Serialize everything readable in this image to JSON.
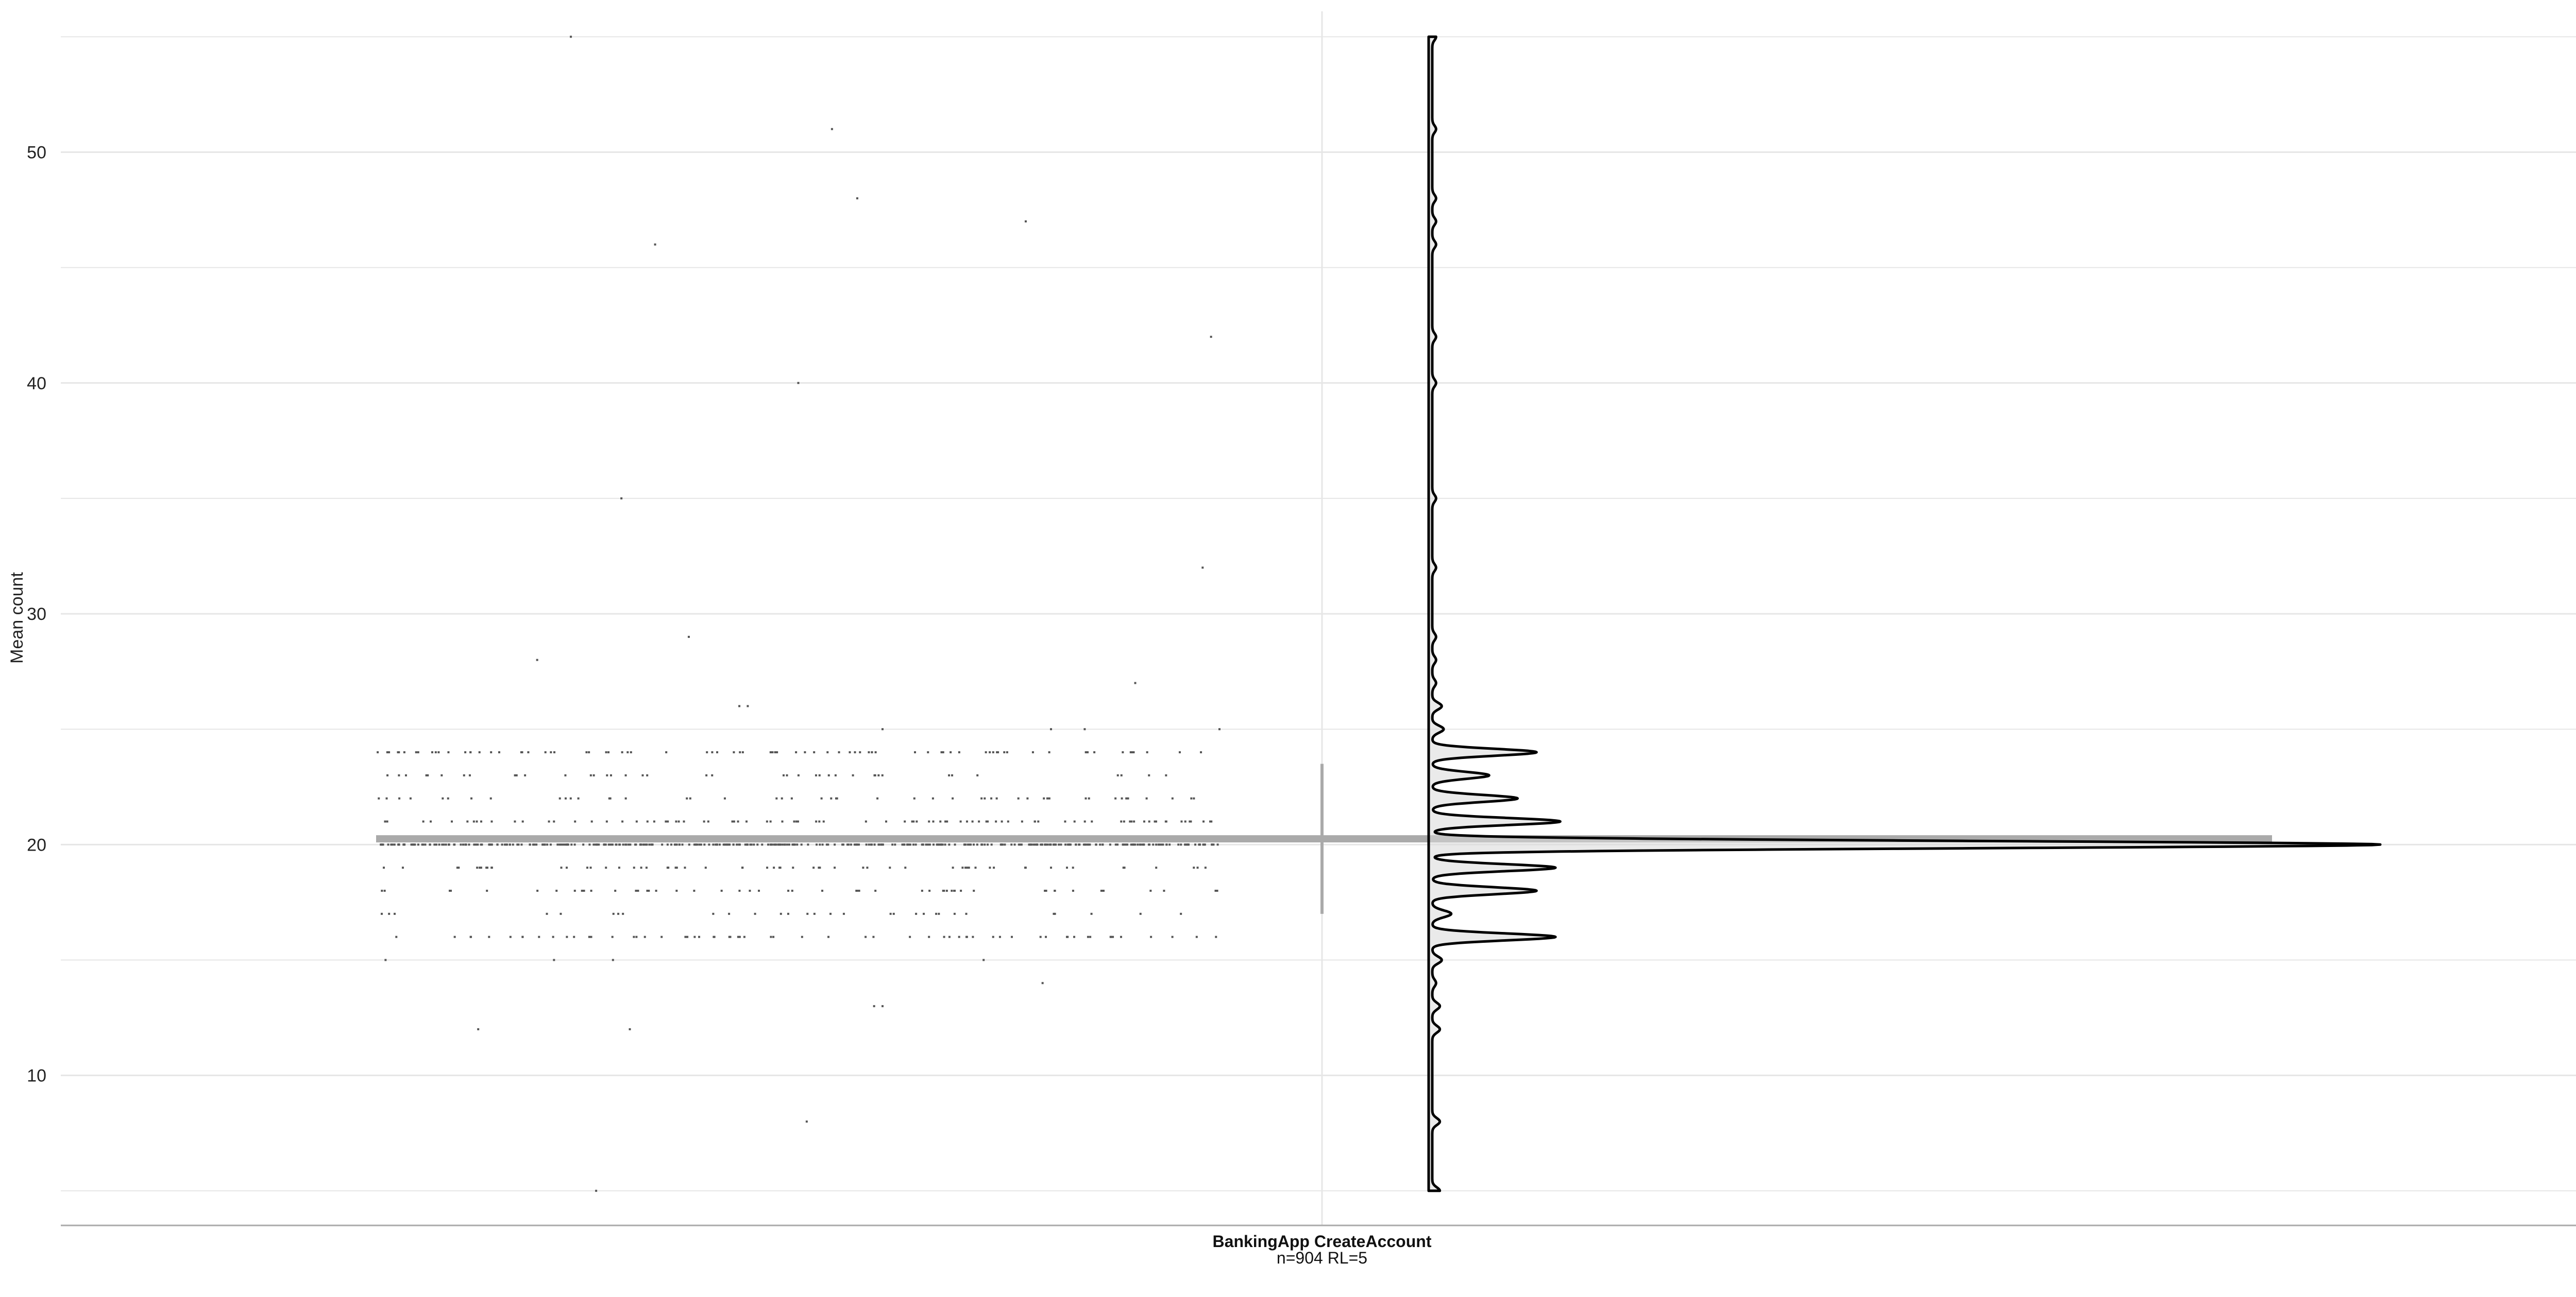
{
  "chart_data": {
    "type": "scatter",
    "subtype": "jittered points with raincloud density, mean bar and sd range",
    "ylabel": "Mean count",
    "ylim": [
      3.5,
      55.7
    ],
    "yticks": [
      10,
      20,
      30,
      40,
      50
    ],
    "grid": true,
    "colors": {
      "points": "#555555",
      "summary": "#aaaaaa",
      "density_line": "#000000",
      "density_fill": "#d9d9d9",
      "grid": "#e6e6e6",
      "axis": "#aaaaaa"
    },
    "category": {
      "label": "BankingApp CreateAccount",
      "sublabel": "n=904 RL=5"
    },
    "summary": {
      "mean": 20.25,
      "sd_low": 17.0,
      "sd_high": 23.5
    },
    "outliers": [
      {
        "x": 0.23,
        "y": 55
      },
      {
        "x": 0.54,
        "y": 51
      },
      {
        "x": 0.57,
        "y": 48
      },
      {
        "x": 0.77,
        "y": 47
      },
      {
        "x": 0.33,
        "y": 46
      },
      {
        "x": 0.99,
        "y": 42
      },
      {
        "x": 0.5,
        "y": 40
      },
      {
        "x": 0.29,
        "y": 35
      },
      {
        "x": 0.98,
        "y": 32
      },
      {
        "x": 0.37,
        "y": 29
      },
      {
        "x": 0.19,
        "y": 28
      },
      {
        "x": 0.43,
        "y": 26
      },
      {
        "x": 0.44,
        "y": 26
      },
      {
        "x": 0.9,
        "y": 27
      },
      {
        "x": 0.6,
        "y": 25
      },
      {
        "x": 0.8,
        "y": 25
      },
      {
        "x": 0.84,
        "y": 25
      },
      {
        "x": 1.0,
        "y": 25
      },
      {
        "x": 0.01,
        "y": 15
      },
      {
        "x": 0.21,
        "y": 15
      },
      {
        "x": 0.28,
        "y": 15
      },
      {
        "x": 0.72,
        "y": 15
      },
      {
        "x": 0.79,
        "y": 14
      },
      {
        "x": 0.12,
        "y": 12
      },
      {
        "x": 0.3,
        "y": 12
      },
      {
        "x": 0.59,
        "y": 13
      },
      {
        "x": 0.6,
        "y": 13
      },
      {
        "x": 0.51,
        "y": 8
      },
      {
        "x": 0.26,
        "y": 5
      }
    ],
    "bulk_counts": [
      {
        "y": 16,
        "count": 62
      },
      {
        "y": 17,
        "count": 30
      },
      {
        "y": 18,
        "count": 52
      },
      {
        "y": 19,
        "count": 60
      },
      {
        "y": 20,
        "count": 370
      },
      {
        "y": 21,
        "count": 88
      },
      {
        "y": 22,
        "count": 48
      },
      {
        "y": 23,
        "count": 40
      },
      {
        "y": 24,
        "count": 80
      }
    ],
    "density": {
      "bandwidth": 0.15,
      "peaks": [
        {
          "y": 5,
          "w": 0.008
        },
        {
          "y": 8,
          "w": 0.008
        },
        {
          "y": 12,
          "w": 0.008
        },
        {
          "y": 13,
          "w": 0.008
        },
        {
          "y": 14,
          "w": 0.004
        },
        {
          "y": 15,
          "w": 0.01
        },
        {
          "y": 16,
          "w": 0.13
        },
        {
          "y": 17,
          "w": 0.02
        },
        {
          "y": 18,
          "w": 0.11
        },
        {
          "y": 19,
          "w": 0.13
        },
        {
          "y": 20,
          "w": 1.0
        },
        {
          "y": 21,
          "w": 0.135
        },
        {
          "y": 22,
          "w": 0.09
        },
        {
          "y": 23,
          "w": 0.06
        },
        {
          "y": 24,
          "w": 0.11
        },
        {
          "y": 25,
          "w": 0.012
        },
        {
          "y": 26,
          "w": 0.01
        },
        {
          "y": 27,
          "w": 0.004
        },
        {
          "y": 28,
          "w": 0.004
        },
        {
          "y": 29,
          "w": 0.004
        },
        {
          "y": 32,
          "w": 0.004
        },
        {
          "y": 35,
          "w": 0.004
        },
        {
          "y": 40,
          "w": 0.004
        },
        {
          "y": 42,
          "w": 0.004
        },
        {
          "y": 46,
          "w": 0.004
        },
        {
          "y": 47,
          "w": 0.004
        },
        {
          "y": 48,
          "w": 0.004
        },
        {
          "y": 51,
          "w": 0.004
        },
        {
          "y": 55,
          "w": 0.004
        }
      ]
    }
  }
}
